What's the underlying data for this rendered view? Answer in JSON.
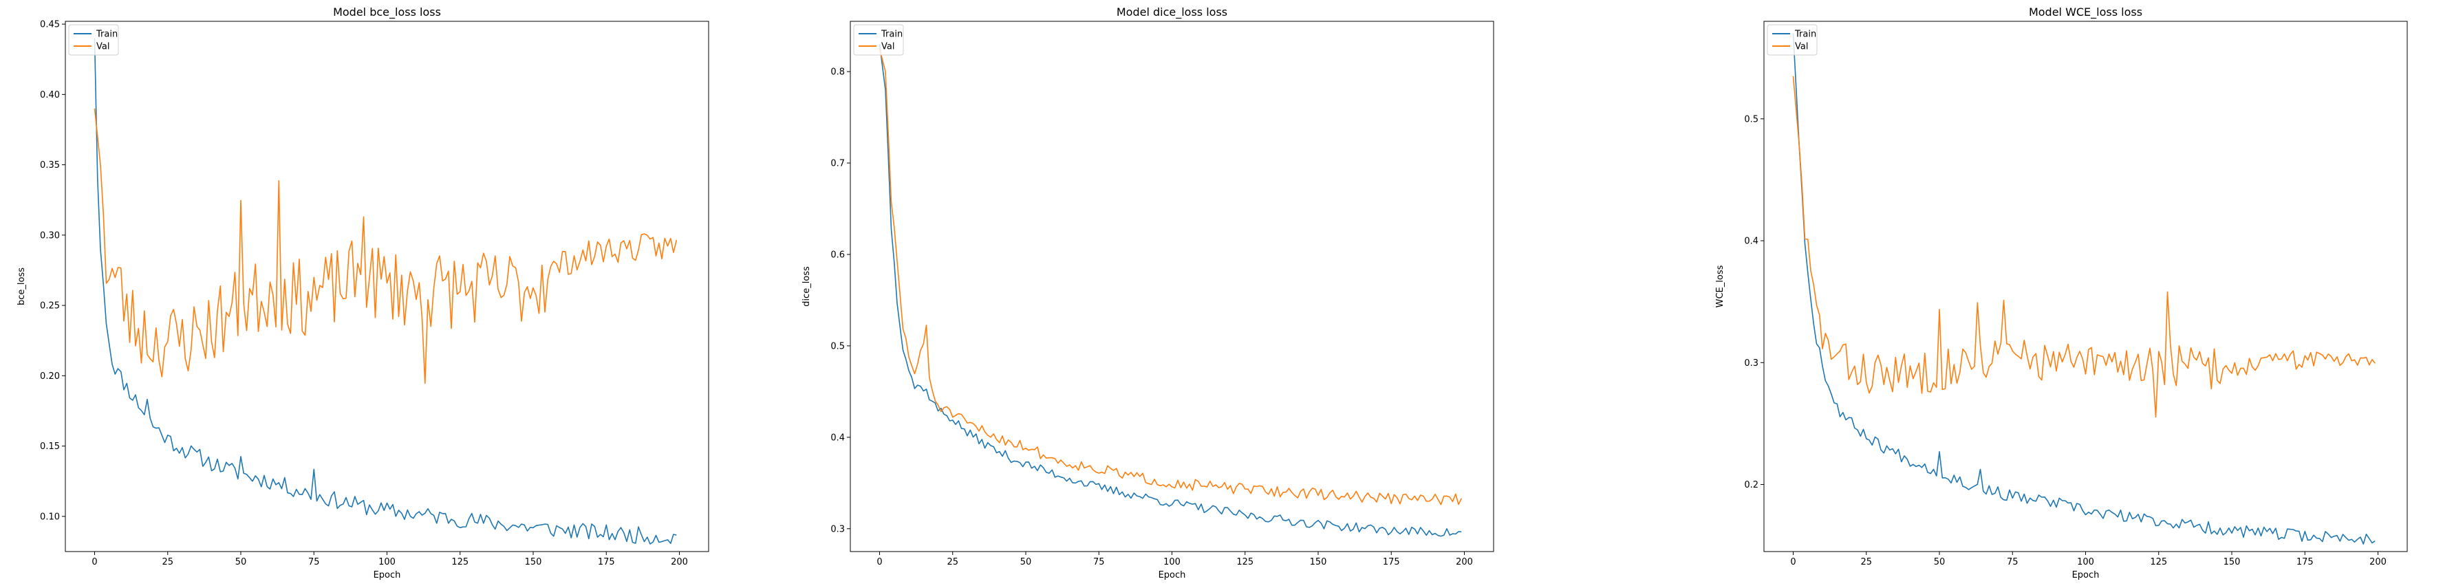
{
  "colors": {
    "train": "#1f77b4",
    "val": "#ff7f0e"
  },
  "chart_data": [
    {
      "type": "line",
      "title": "Model bce_loss loss",
      "xlabel": "Epoch",
      "ylabel": "bce_loss",
      "xlim": [
        -10,
        210
      ],
      "ylim": [
        0.075,
        0.452
      ],
      "xticks": [
        0,
        25,
        50,
        75,
        100,
        125,
        150,
        175,
        200
      ],
      "yticks": [
        0.1,
        0.15,
        0.2,
        0.25,
        0.3,
        0.35,
        0.4,
        0.45
      ],
      "ytick_labels": [
        "0.10",
        "0.15",
        "0.20",
        "0.25",
        "0.30",
        "0.35",
        "0.40",
        "0.45"
      ],
      "legend": {
        "placement": "upper-left",
        "entries": [
          "Train",
          "Val"
        ]
      },
      "grid": false,
      "series": [
        {
          "name": "Train",
          "color": "#1f77b4",
          "anchors": [
            [
              0,
              0.44
            ],
            [
              1,
              0.34
            ],
            [
              2,
              0.29
            ],
            [
              4,
              0.24
            ],
            [
              6,
              0.21
            ],
            [
              10,
              0.195
            ],
            [
              15,
              0.18
            ],
            [
              20,
              0.165
            ],
            [
              25,
              0.155
            ],
            [
              30,
              0.148
            ],
            [
              40,
              0.138
            ],
            [
              50,
              0.13
            ],
            [
              60,
              0.125
            ],
            [
              75,
              0.115
            ],
            [
              90,
              0.108
            ],
            [
              100,
              0.104
            ],
            [
              125,
              0.098
            ],
            [
              150,
              0.092
            ],
            [
              175,
              0.088
            ],
            [
              199,
              0.085
            ]
          ],
          "noise": 0.006,
          "spikes": [
            [
              50,
              0.013
            ],
            [
              75,
              0.018
            ],
            [
              18,
              0.012
            ]
          ],
          "seed": 11
        },
        {
          "name": "Val",
          "color": "#ff7f0e",
          "anchors": [
            [
              0,
              0.39
            ],
            [
              2,
              0.35
            ],
            [
              4,
              0.28
            ],
            [
              8,
              0.265
            ],
            [
              12,
              0.24
            ],
            [
              20,
              0.225
            ],
            [
              30,
              0.225
            ],
            [
              40,
              0.235
            ],
            [
              50,
              0.25
            ],
            [
              60,
              0.26
            ],
            [
              70,
              0.255
            ],
            [
              80,
              0.26
            ],
            [
              90,
              0.27
            ],
            [
              100,
              0.265
            ],
            [
              110,
              0.26
            ],
            [
              125,
              0.262
            ],
            [
              140,
              0.262
            ],
            [
              150,
              0.265
            ],
            [
              160,
              0.28
            ],
            [
              175,
              0.29
            ],
            [
              199,
              0.292
            ]
          ],
          "noise": 0.028,
          "tail_from": 155,
          "tail_noise": 0.01,
          "spikes": [
            [
              50,
              0.09
            ],
            [
              63,
              0.09
            ],
            [
              92,
              0.065
            ],
            [
              113,
              -0.05
            ]
          ],
          "seed": 23
        }
      ]
    },
    {
      "type": "line",
      "title": "Model dice_loss loss",
      "xlabel": "Epoch",
      "ylabel": "dice_loss",
      "xlim": [
        -10,
        210
      ],
      "ylim": [
        0.275,
        0.855
      ],
      "xticks": [
        0,
        25,
        50,
        75,
        100,
        125,
        150,
        175,
        200
      ],
      "yticks": [
        0.3,
        0.4,
        0.5,
        0.6,
        0.7,
        0.8
      ],
      "ytick_labels": [
        "0.3",
        "0.4",
        "0.5",
        "0.6",
        "0.7",
        "0.8"
      ],
      "legend": {
        "placement": "upper-left",
        "entries": [
          "Train",
          "Val"
        ]
      },
      "grid": false,
      "series": [
        {
          "name": "Train",
          "color": "#1f77b4",
          "anchors": [
            [
              0,
              0.83
            ],
            [
              2,
              0.78
            ],
            [
              4,
              0.63
            ],
            [
              6,
              0.55
            ],
            [
              8,
              0.5
            ],
            [
              10,
              0.475
            ],
            [
              12,
              0.455
            ],
            [
              15,
              0.455
            ],
            [
              20,
              0.43
            ],
            [
              25,
              0.42
            ],
            [
              30,
              0.405
            ],
            [
              40,
              0.385
            ],
            [
              50,
              0.37
            ],
            [
              60,
              0.36
            ],
            [
              75,
              0.345
            ],
            [
              90,
              0.335
            ],
            [
              100,
              0.328
            ],
            [
              125,
              0.315
            ],
            [
              150,
              0.305
            ],
            [
              175,
              0.298
            ],
            [
              199,
              0.295
            ]
          ],
          "noise": 0.005,
          "seed": 37
        },
        {
          "name": "Val",
          "color": "#ff7f0e",
          "anchors": [
            [
              0,
              0.825
            ],
            [
              2,
              0.8
            ],
            [
              4,
              0.66
            ],
            [
              6,
              0.59
            ],
            [
              8,
              0.52
            ],
            [
              10,
              0.49
            ],
            [
              12,
              0.47
            ],
            [
              15,
              0.5
            ],
            [
              18,
              0.45
            ],
            [
              20,
              0.435
            ],
            [
              25,
              0.425
            ],
            [
              30,
              0.415
            ],
            [
              40,
              0.4
            ],
            [
              50,
              0.39
            ],
            [
              60,
              0.375
            ],
            [
              75,
              0.365
            ],
            [
              90,
              0.355
            ],
            [
              100,
              0.35
            ],
            [
              125,
              0.343
            ],
            [
              150,
              0.338
            ],
            [
              175,
              0.333
            ],
            [
              199,
              0.332
            ]
          ],
          "noise": 0.006,
          "spikes": [
            [
              16,
              0.04
            ]
          ],
          "seed": 51
        }
      ]
    },
    {
      "type": "line",
      "title": "Model WCE_loss loss",
      "xlabel": "Epoch",
      "ylabel": "WCE_loss",
      "xlim": [
        -10,
        210
      ],
      "ylim": [
        0.145,
        0.58
      ],
      "xticks": [
        0,
        25,
        50,
        75,
        100,
        125,
        150,
        175,
        200
      ],
      "yticks": [
        0.2,
        0.3,
        0.4,
        0.5
      ],
      "ytick_labels": [
        "0.2",
        "0.3",
        "0.4",
        "0.5"
      ],
      "legend": {
        "placement": "upper-left",
        "entries": [
          "Train",
          "Val"
        ]
      },
      "grid": false,
      "series": [
        {
          "name": "Train",
          "color": "#1f77b4",
          "anchors": [
            [
              0,
              0.57
            ],
            [
              2,
              0.48
            ],
            [
              4,
              0.4
            ],
            [
              6,
              0.35
            ],
            [
              8,
              0.32
            ],
            [
              12,
              0.28
            ],
            [
              16,
              0.26
            ],
            [
              20,
              0.25
            ],
            [
              25,
              0.24
            ],
            [
              30,
              0.232
            ],
            [
              40,
              0.22
            ],
            [
              50,
              0.21
            ],
            [
              60,
              0.2
            ],
            [
              75,
              0.19
            ],
            [
              90,
              0.185
            ],
            [
              100,
              0.178
            ],
            [
              125,
              0.17
            ],
            [
              150,
              0.162
            ],
            [
              175,
              0.158
            ],
            [
              199,
              0.155
            ]
          ],
          "noise": 0.005,
          "spikes": [
            [
              50,
              0.015
            ],
            [
              64,
              0.015
            ]
          ],
          "seed": 67
        },
        {
          "name": "Val",
          "color": "#ff7f0e",
          "anchors": [
            [
              0,
              0.535
            ],
            [
              2,
              0.48
            ],
            [
              4,
              0.41
            ],
            [
              6,
              0.37
            ],
            [
              8,
              0.34
            ],
            [
              12,
              0.31
            ],
            [
              20,
              0.295
            ],
            [
              30,
              0.29
            ],
            [
              40,
              0.29
            ],
            [
              50,
              0.295
            ],
            [
              60,
              0.3
            ],
            [
              75,
              0.305
            ],
            [
              90,
              0.3
            ],
            [
              100,
              0.298
            ],
            [
              125,
              0.3
            ],
            [
              140,
              0.295
            ],
            [
              150,
              0.295
            ],
            [
              160,
              0.3
            ],
            [
              175,
              0.303
            ],
            [
              199,
              0.305
            ]
          ],
          "noise": 0.018,
          "tail_from": 150,
          "tail_noise": 0.008,
          "spikes": [
            [
              50,
              0.065
            ],
            [
              63,
              0.065
            ],
            [
              72,
              0.05
            ],
            [
              128,
              0.045
            ],
            [
              124,
              -0.035
            ]
          ],
          "seed": 83
        }
      ]
    }
  ]
}
